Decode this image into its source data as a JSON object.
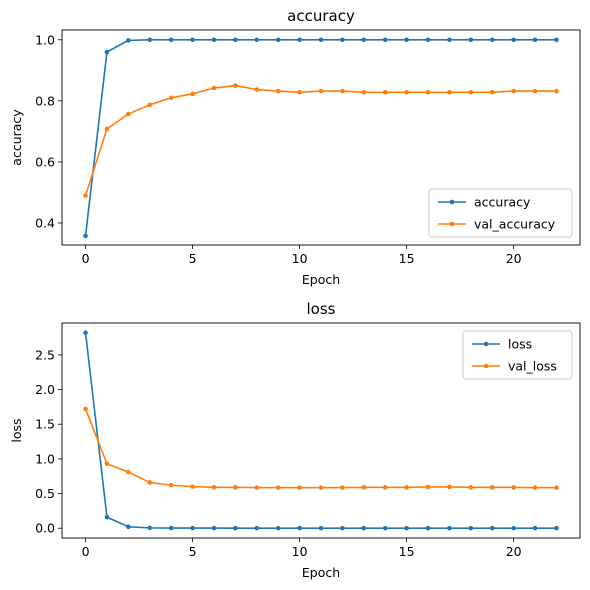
{
  "colors": {
    "series1": "#1f77b4",
    "series2": "#ff7f0e"
  },
  "chart_data": [
    {
      "type": "line",
      "title": "accuracy",
      "xlabel": "Epoch",
      "ylabel": "accuracy",
      "xlim": [
        -1.1,
        23.1
      ],
      "ylim": [
        0.328,
        1.032
      ],
      "xticks": [
        0,
        5,
        10,
        15,
        20
      ],
      "yticks": [
        0.4,
        0.6,
        0.8,
        1.0
      ],
      "ytick_labels": [
        "0.4",
        "0.6",
        "0.8",
        "1.0"
      ],
      "legend_position": "lower-right",
      "x": [
        0,
        1,
        2,
        3,
        4,
        5,
        6,
        7,
        8,
        9,
        10,
        11,
        12,
        13,
        14,
        15,
        16,
        17,
        18,
        19,
        20,
        21,
        22
      ],
      "series": [
        {
          "name": "accuracy",
          "values": [
            0.358,
            0.96,
            0.998,
            1.0,
            1.0,
            1.0,
            1.0,
            1.0,
            1.0,
            1.0,
            1.0,
            1.0,
            1.0,
            1.0,
            1.0,
            1.0,
            1.0,
            1.0,
            1.0,
            1.0,
            1.0,
            1.0,
            1.0
          ]
        },
        {
          "name": "val_accuracy",
          "values": [
            0.49,
            0.708,
            0.757,
            0.787,
            0.81,
            0.823,
            0.842,
            0.85,
            0.837,
            0.832,
            0.828,
            0.832,
            0.832,
            0.828,
            0.828,
            0.828,
            0.828,
            0.828,
            0.828,
            0.828,
            0.832,
            0.832,
            0.832
          ]
        }
      ]
    },
    {
      "type": "line",
      "title": "loss",
      "xlabel": "Epoch",
      "ylabel": "loss",
      "xlim": [
        -1.1,
        23.1
      ],
      "ylim": [
        -0.141,
        2.96
      ],
      "xticks": [
        0,
        5,
        10,
        15,
        20
      ],
      "yticks": [
        0.0,
        0.5,
        1.0,
        1.5,
        2.0,
        2.5
      ],
      "ytick_labels": [
        "0.0",
        "0.5",
        "1.0",
        "1.5",
        "2.0",
        "2.5"
      ],
      "legend_position": "top-right",
      "x": [
        0,
        1,
        2,
        3,
        4,
        5,
        6,
        7,
        8,
        9,
        10,
        11,
        12,
        13,
        14,
        15,
        16,
        17,
        18,
        19,
        20,
        21,
        22
      ],
      "series": [
        {
          "name": "loss",
          "values": [
            2.82,
            0.16,
            0.02,
            0.005,
            0.003,
            0.002,
            0.002,
            0.001,
            0.001,
            0.001,
            0.001,
            0.001,
            0.001,
            0.001,
            0.001,
            0.001,
            0.001,
            0.001,
            0.001,
            0.001,
            0.001,
            0.001,
            0.001
          ]
        },
        {
          "name": "val_loss",
          "values": [
            1.72,
            0.93,
            0.81,
            0.66,
            0.62,
            0.6,
            0.59,
            0.59,
            0.585,
            0.585,
            0.585,
            0.585,
            0.585,
            0.59,
            0.59,
            0.59,
            0.595,
            0.595,
            0.59,
            0.59,
            0.59,
            0.585,
            0.585
          ]
        }
      ]
    }
  ]
}
